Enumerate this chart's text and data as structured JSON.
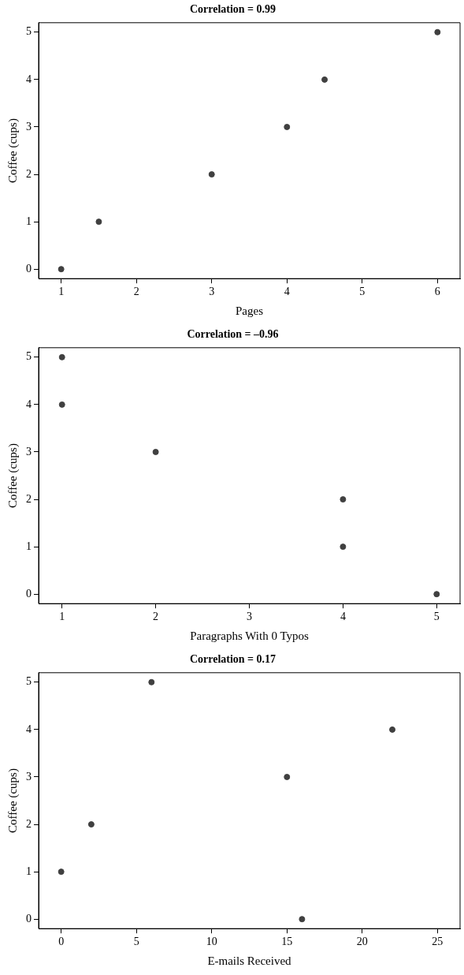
{
  "chart_data": [
    {
      "type": "scatter",
      "title": "Correlation = 0.99",
      "xlabel": "Pages",
      "ylabel": "Coffee (cups)",
      "x": [
        1,
        1.5,
        3,
        4,
        4.5,
        6
      ],
      "values": [
        0,
        1,
        2,
        3,
        4,
        5
      ],
      "color": "#404040",
      "xlim": [
        0.7,
        6.3
      ],
      "xticks": [
        1,
        2,
        3,
        4,
        5,
        6
      ],
      "ylim": [
        -0.2,
        5.2
      ],
      "yticks": [
        0,
        1,
        2,
        3,
        4,
        5
      ],
      "grid": false,
      "legend": false,
      "marker": "circle"
    },
    {
      "type": "scatter",
      "title": "Correlation = –0.96",
      "xlabel": "Paragraphs With 0 Typos",
      "ylabel": "Coffee (cups)",
      "x": [
        1,
        1,
        2,
        4,
        4,
        5
      ],
      "values": [
        5,
        4,
        3,
        2,
        1,
        0
      ],
      "color": "#404040",
      "xlim": [
        0.75,
        5.25
      ],
      "xticks": [
        1,
        2,
        3,
        4,
        5
      ],
      "ylim": [
        -0.2,
        5.2
      ],
      "yticks": [
        0,
        1,
        2,
        3,
        4,
        5
      ],
      "grid": false,
      "legend": false,
      "marker": "circle"
    },
    {
      "type": "scatter",
      "title": "Correlation = 0.17",
      "xlabel": "E-mails Received",
      "ylabel": "Coffee (cups)",
      "x": [
        0,
        2,
        6,
        15,
        16,
        22
      ],
      "values": [
        1,
        2,
        5,
        3,
        0,
        4
      ],
      "color": "#404040",
      "xlim": [
        -1.5,
        26.5
      ],
      "xticks": [
        0,
        5,
        10,
        15,
        20,
        25
      ],
      "ylim": [
        -0.2,
        5.2
      ],
      "yticks": [
        0,
        1,
        2,
        3,
        4,
        5
      ],
      "grid": false,
      "legend": false,
      "marker": "circle"
    }
  ]
}
